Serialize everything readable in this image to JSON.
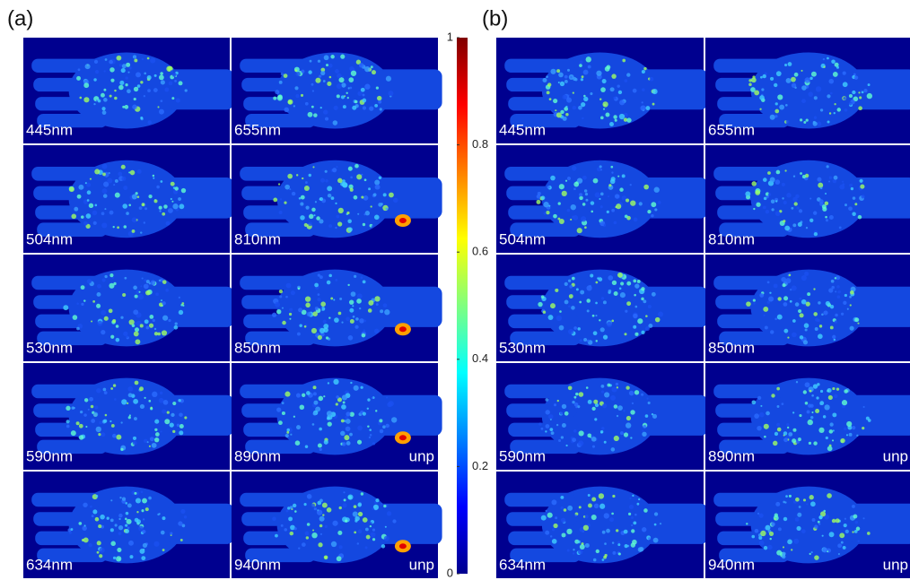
{
  "panels": [
    {
      "label": "(a)",
      "cells": [
        {
          "wavelength": "445nm"
        },
        {
          "wavelength": "655nm"
        },
        {
          "wavelength": "504nm"
        },
        {
          "wavelength": "810nm"
        },
        {
          "wavelength": "530nm"
        },
        {
          "wavelength": "850nm"
        },
        {
          "wavelength": "590nm"
        },
        {
          "wavelength": "890nm",
          "tag": "unp"
        },
        {
          "wavelength": "634nm"
        },
        {
          "wavelength": "940nm",
          "tag": "unp"
        }
      ]
    },
    {
      "label": "(b)",
      "cells": [
        {
          "wavelength": "445nm"
        },
        {
          "wavelength": "655nm"
        },
        {
          "wavelength": "504nm"
        },
        {
          "wavelength": "810nm"
        },
        {
          "wavelength": "530nm"
        },
        {
          "wavelength": "850nm"
        },
        {
          "wavelength": "590nm"
        },
        {
          "wavelength": "890nm",
          "tag": "unp"
        },
        {
          "wavelength": "634nm"
        },
        {
          "wavelength": "940nm",
          "tag": "unp"
        }
      ]
    }
  ],
  "colorbar": {
    "lim": [
      0,
      1
    ],
    "ticks": [
      0,
      0.2,
      0.4,
      0.6,
      0.8,
      1
    ]
  }
}
